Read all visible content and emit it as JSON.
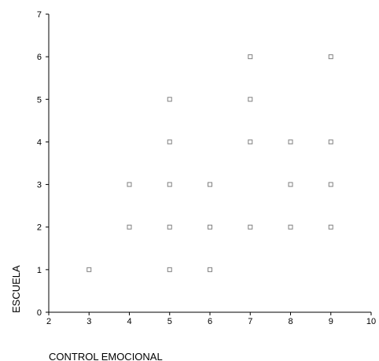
{
  "chart_data": {
    "type": "scatter",
    "title": "",
    "xlabel": "CONTROL EMOCIONAL",
    "ylabel": "ESCUELA",
    "xlim": [
      2,
      10
    ],
    "ylim": [
      0,
      7
    ],
    "xticks": [
      "2",
      "3",
      "4",
      "5",
      "6",
      "7",
      "8",
      "9",
      "10"
    ],
    "yticks": [
      "0",
      "1",
      "2",
      "3",
      "4",
      "5",
      "6",
      "7"
    ],
    "grid": false,
    "legend": "none",
    "marker": "open-square",
    "points": [
      {
        "x": 3,
        "y": 1
      },
      {
        "x": 4,
        "y": 2
      },
      {
        "x": 4,
        "y": 3
      },
      {
        "x": 5,
        "y": 1
      },
      {
        "x": 5,
        "y": 2
      },
      {
        "x": 5,
        "y": 3
      },
      {
        "x": 5,
        "y": 4
      },
      {
        "x": 5,
        "y": 5
      },
      {
        "x": 6,
        "y": 1
      },
      {
        "x": 6,
        "y": 2
      },
      {
        "x": 6,
        "y": 3
      },
      {
        "x": 7,
        "y": 2
      },
      {
        "x": 7,
        "y": 4
      },
      {
        "x": 7,
        "y": 5
      },
      {
        "x": 7,
        "y": 6
      },
      {
        "x": 8,
        "y": 2
      },
      {
        "x": 8,
        "y": 3
      },
      {
        "x": 8,
        "y": 4
      },
      {
        "x": 9,
        "y": 2
      },
      {
        "x": 9,
        "y": 3
      },
      {
        "x": 9,
        "y": 4
      },
      {
        "x": 9,
        "y": 6
      }
    ],
    "colors": {
      "axis": "#000000",
      "marker_stroke": "#808080",
      "background": "#ffffff"
    }
  }
}
